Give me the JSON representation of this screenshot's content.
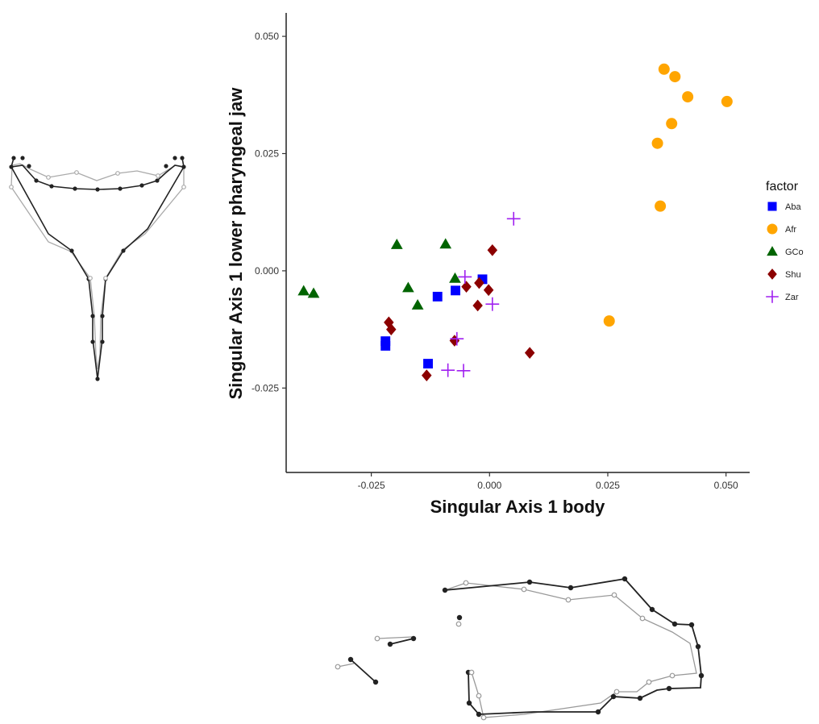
{
  "chart_data": {
    "type": "scatter",
    "xlabel": "Singular Axis 1 body",
    "ylabel": "Singular Axis 1 lower pharyngeal jaw",
    "xlim": [
      -0.043,
      0.055
    ],
    "ylim": [
      -0.043,
      0.055
    ],
    "x_ticks": [
      -0.025,
      0.0,
      0.025,
      0.05
    ],
    "x_tick_labels": [
      "-0.025",
      "0.000",
      "0.025",
      "0.050"
    ],
    "y_ticks": [
      -0.025,
      0.0,
      0.025,
      0.05
    ],
    "y_tick_labels": [
      "-0.025",
      "0.000",
      "0.025",
      "0.050"
    ],
    "grid": false,
    "legend": {
      "title": "factor",
      "placement": "right",
      "entries": [
        "Aba",
        "Afr",
        "GCo",
        "Shu",
        "Zar"
      ]
    },
    "series": [
      {
        "name": "Aba",
        "color": "#0000ff",
        "shape": "square",
        "points": [
          [
            -0.022,
            -0.015
          ],
          [
            -0.022,
            -0.016
          ],
          [
            -0.013,
            -0.0198
          ],
          [
            -0.011,
            -0.0055
          ],
          [
            -0.0072,
            -0.0042
          ],
          [
            -0.0015,
            -0.0018
          ]
        ]
      },
      {
        "name": "Afr",
        "color": "#ffa500",
        "shape": "circle",
        "points": [
          [
            0.0369,
            0.043
          ],
          [
            0.0392,
            0.0414
          ],
          [
            0.0419,
            0.0371
          ],
          [
            0.0502,
            0.0361
          ],
          [
            0.0385,
            0.0314
          ],
          [
            0.0355,
            0.0272
          ],
          [
            0.0361,
            0.0138
          ],
          [
            0.0253,
            -0.0107
          ]
        ]
      },
      {
        "name": "GCo",
        "color": "#006400",
        "shape": "triangle",
        "points": [
          [
            -0.0393,
            -0.0043
          ],
          [
            -0.0372,
            -0.0048
          ],
          [
            -0.0196,
            0.0056
          ],
          [
            -0.0093,
            0.0057
          ],
          [
            -0.0172,
            -0.0036
          ],
          [
            -0.0152,
            -0.0073
          ],
          [
            -0.0073,
            -0.0016
          ]
        ]
      },
      {
        "name": "Shu",
        "color": "#8b0000",
        "shape": "diamond",
        "points": [
          [
            0.0006,
            0.0044
          ],
          [
            -0.0022,
            -0.0026
          ],
          [
            -0.0002,
            -0.0041
          ],
          [
            -0.0049,
            -0.0034
          ],
          [
            -0.0025,
            -0.0074
          ],
          [
            -0.0213,
            -0.011
          ],
          [
            -0.0208,
            -0.0125
          ],
          [
            -0.0074,
            -0.0149
          ],
          [
            -0.0133,
            -0.0223
          ],
          [
            0.0085,
            -0.0175
          ]
        ]
      },
      {
        "name": "Zar",
        "color": "#a020f0",
        "shape": "plus",
        "points": [
          [
            0.0051,
            0.0111
          ],
          [
            -0.0052,
            -0.0013
          ],
          [
            0.0006,
            -0.0071
          ],
          [
            -0.0069,
            -0.0145
          ],
          [
            -0.0088,
            -0.0212
          ],
          [
            -0.0055,
            -0.0213
          ]
        ]
      }
    ]
  }
}
